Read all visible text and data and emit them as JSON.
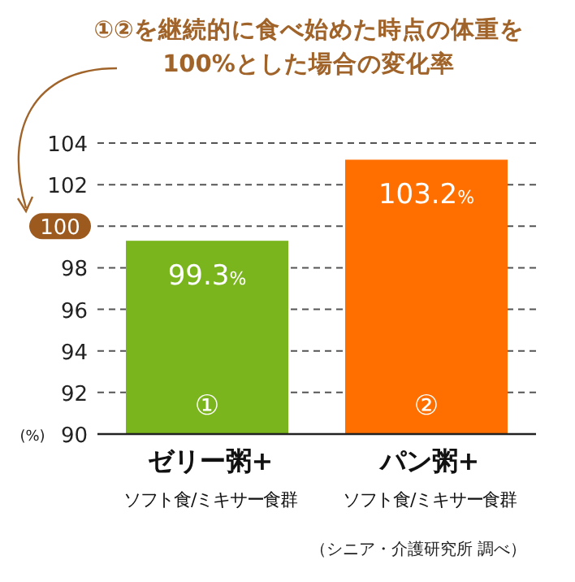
{
  "chart_data": {
    "type": "bar",
    "title": "①②を継続的に食べ始めた時点の体重を\n100%とした場合の変化率",
    "ylabel": "(%)",
    "categories": [
      "ゼリー粥+\nソフト食/ミキサー食群",
      "パン粥+\nソフト食/ミキサー食群"
    ],
    "values": [
      99.3,
      103.2
    ],
    "colors": [
      "#7ab51d",
      "#ff6f00"
    ],
    "value_labels": [
      "99.3%",
      "103.2%"
    ],
    "ylim": [
      90,
      104
    ],
    "yticks": [
      90,
      92,
      94,
      96,
      98,
      102,
      104
    ],
    "grid": "y",
    "ref_lines": [
      {
        "axis": "y",
        "value": 100,
        "label": "100"
      }
    ],
    "annotations": [
      "①",
      "②",
      "（シニア・介護研究所 調べ）"
    ]
  }
}
